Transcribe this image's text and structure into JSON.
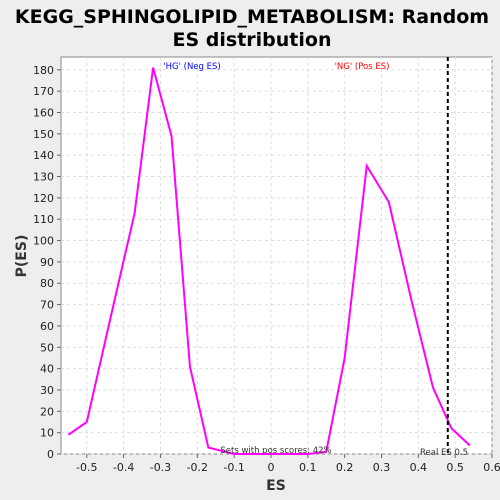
{
  "chart_data": {
    "type": "line",
    "title_line1": "KEGG_SPHINGOLIPID_METABOLISM: Random",
    "title_line2": "ES distribution",
    "xlabel": "ES",
    "ylabel": "P(ES)",
    "xlim": [
      -0.57,
      0.6
    ],
    "ylim": [
      0,
      186
    ],
    "xticks": [
      -0.5,
      -0.4,
      -0.3,
      -0.2,
      -0.1,
      0,
      0.1,
      0.2,
      0.3,
      0.4,
      0.5,
      0.6
    ],
    "xtick_labels": [
      "-0.5",
      "-0.4",
      "-0.3",
      "-0.2",
      "-0.1",
      "0",
      "0.1",
      "0.2",
      "0.3",
      "0.4",
      "0.5",
      "0.6"
    ],
    "yticks": [
      0,
      10,
      20,
      30,
      40,
      50,
      60,
      70,
      80,
      90,
      100,
      110,
      120,
      130,
      140,
      150,
      160,
      170,
      180
    ],
    "ytick_labels": [
      "0",
      "10",
      "20",
      "30",
      "40",
      "50",
      "60",
      "70",
      "80",
      "90",
      "100",
      "110",
      "120",
      "130",
      "140",
      "150",
      "160",
      "170",
      "180"
    ],
    "grid": true,
    "series": [
      {
        "color": "#ff00ff",
        "x": [
          -0.55,
          -0.5,
          -0.43,
          -0.37,
          -0.32,
          -0.27,
          -0.22,
          -0.17,
          -0.1,
          0.1,
          0.15,
          0.2,
          0.26,
          0.32,
          0.38,
          0.44,
          0.49,
          0.54
        ],
        "y": [
          9,
          15,
          68,
          113,
          181,
          149,
          41,
          3,
          0,
          0,
          1,
          45,
          135,
          118,
          73,
          31,
          12,
          4
        ]
      }
    ],
    "real_es": 0.48,
    "real_es_color": "#000000",
    "annotations": {
      "neg_label": "'HG' (Neg ES)",
      "neg_color": "#0000ff",
      "pos_label": "'NG' (Pos ES)",
      "pos_color": "#ff0000",
      "pos_scores_text": "Sets with pos scores: 42%",
      "real_es_text": "Real ES 0.5"
    }
  }
}
